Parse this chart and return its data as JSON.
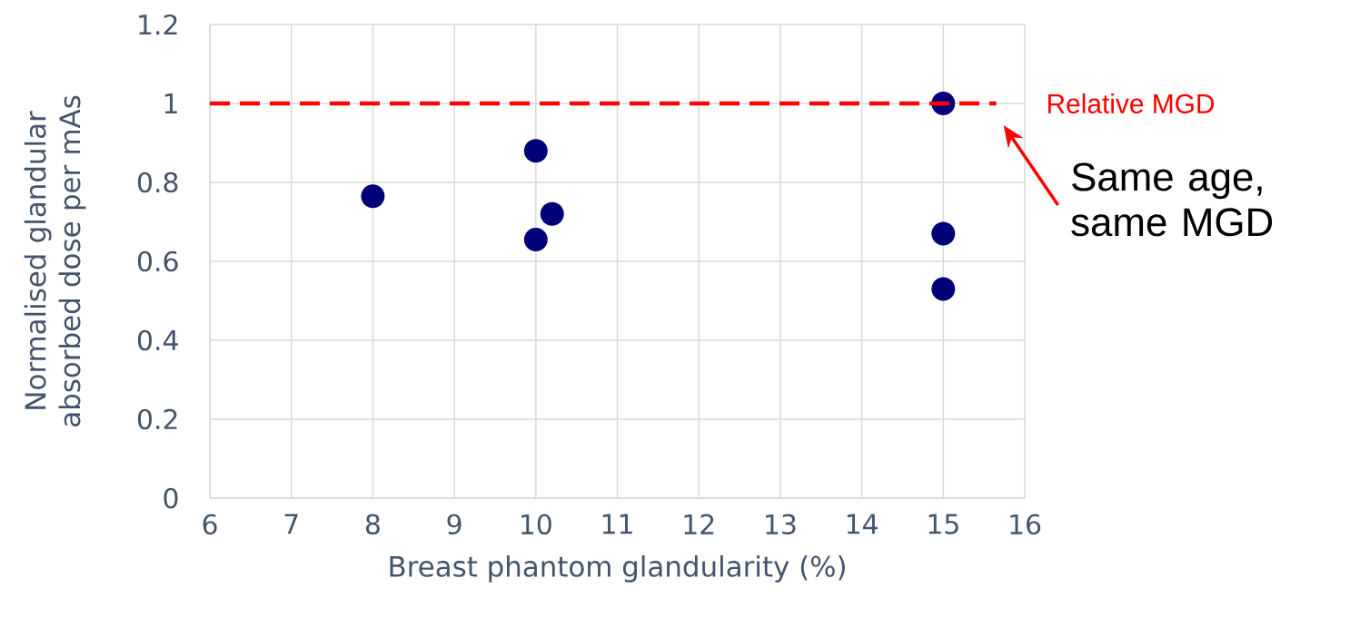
{
  "chart_data": {
    "type": "scatter",
    "xlabel": "Breast phantom glandularity (%)",
    "ylabel": "Normalised glandular absorbed dose per mAs",
    "x": [
      8,
      10,
      10.2,
      10,
      15,
      15,
      15
    ],
    "values": [
      0.765,
      0.88,
      0.72,
      0.655,
      1.0,
      0.67,
      0.53
    ],
    "color": "#000078",
    "marker": "circle",
    "xlim": [
      6,
      16
    ],
    "xticks": [
      6,
      7,
      8,
      9,
      10,
      11,
      12,
      13,
      14,
      15,
      16
    ],
    "ylim": [
      0,
      1.2
    ],
    "yticks": [
      0,
      0.2,
      0.4,
      0.6,
      0.8,
      1,
      1.2
    ],
    "grid": true,
    "legend": false,
    "ref_lines": [
      {
        "axis": "y",
        "value": 1,
        "label": "Relative MGD",
        "color": "#ff0000",
        "line_style": "dashed"
      }
    ],
    "annotations": [
      {
        "text": "Same age, same MGD",
        "x": 15.65,
        "y": 1
      }
    ]
  }
}
